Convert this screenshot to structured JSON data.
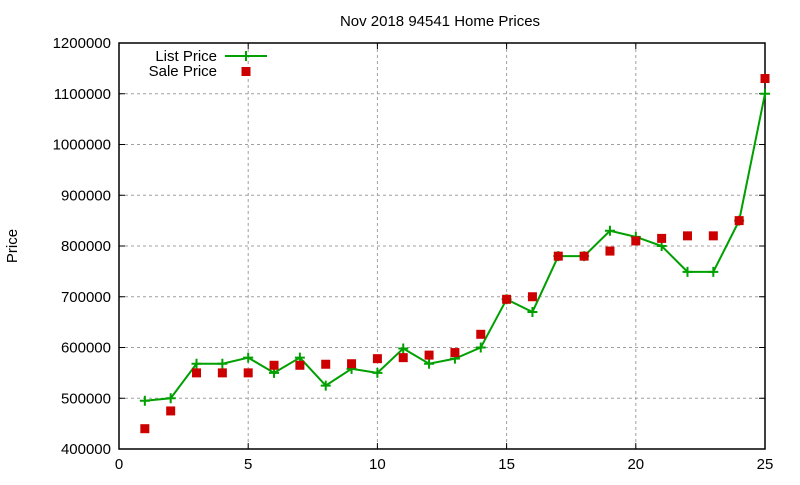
{
  "chart_data": {
    "type": "line",
    "title": "Nov 2018 94541 Home Prices",
    "xlabel": "",
    "ylabel": "Price",
    "xlim": [
      0,
      25
    ],
    "ylim": [
      400000,
      1200000
    ],
    "xticks": [
      0,
      5,
      10,
      15,
      20,
      25
    ],
    "yticks": [
      400000,
      500000,
      600000,
      700000,
      800000,
      900000,
      1000000,
      1100000,
      1200000
    ],
    "grid": true,
    "legend_position": "top-left",
    "x": [
      1,
      2,
      3,
      4,
      5,
      6,
      7,
      8,
      9,
      10,
      11,
      12,
      13,
      14,
      15,
      16,
      17,
      18,
      19,
      20,
      21,
      22,
      23,
      24,
      25
    ],
    "series": [
      {
        "name": "List Price",
        "style": "line+cross",
        "color": "#00a000",
        "values": [
          495000,
          500000,
          568000,
          568000,
          580000,
          550000,
          580000,
          525000,
          558000,
          550000,
          598000,
          568000,
          578000,
          600000,
          695000,
          670000,
          780000,
          780000,
          830000,
          818000,
          800000,
          749000,
          749000,
          850000,
          1100000
        ]
      },
      {
        "name": "Sale Price",
        "style": "square",
        "color": "#cc0000",
        "values": [
          440000,
          475000,
          550000,
          550000,
          550000,
          565000,
          565000,
          567000,
          568000,
          578000,
          580000,
          585000,
          590000,
          626000,
          695000,
          700000,
          780000,
          780000,
          790000,
          810000,
          815000,
          820000,
          820000,
          850000,
          1130000
        ]
      }
    ]
  }
}
